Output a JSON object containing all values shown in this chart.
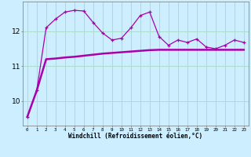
{
  "title": "",
  "xlabel": "Windchill (Refroidissement éolien,°C)",
  "bg_color": "#cceeff",
  "grid_color": "#aaddcc",
  "line_color": "#aa00aa",
  "x_values": [
    0,
    1,
    2,
    3,
    4,
    5,
    6,
    7,
    8,
    9,
    10,
    11,
    12,
    13,
    14,
    15,
    16,
    17,
    18,
    19,
    20,
    21,
    22,
    23
  ],
  "line1": [
    9.55,
    10.3,
    12.1,
    12.35,
    12.55,
    12.6,
    12.58,
    12.25,
    11.95,
    11.75,
    11.8,
    12.1,
    12.45,
    12.55,
    11.85,
    11.6,
    11.75,
    11.68,
    11.78,
    11.55,
    11.5,
    11.6,
    11.75,
    11.68
  ],
  "line2": [
    9.55,
    10.3,
    11.2,
    11.22,
    11.25,
    11.27,
    11.3,
    11.33,
    11.36,
    11.38,
    11.4,
    11.42,
    11.44,
    11.46,
    11.47,
    11.47,
    11.47,
    11.47,
    11.47,
    11.47,
    11.47,
    11.47,
    11.47,
    11.47
  ],
  "ylim": [
    9.3,
    12.85
  ],
  "yticks": [
    10,
    11,
    12
  ],
  "xlim": [
    -0.5,
    23.5
  ]
}
